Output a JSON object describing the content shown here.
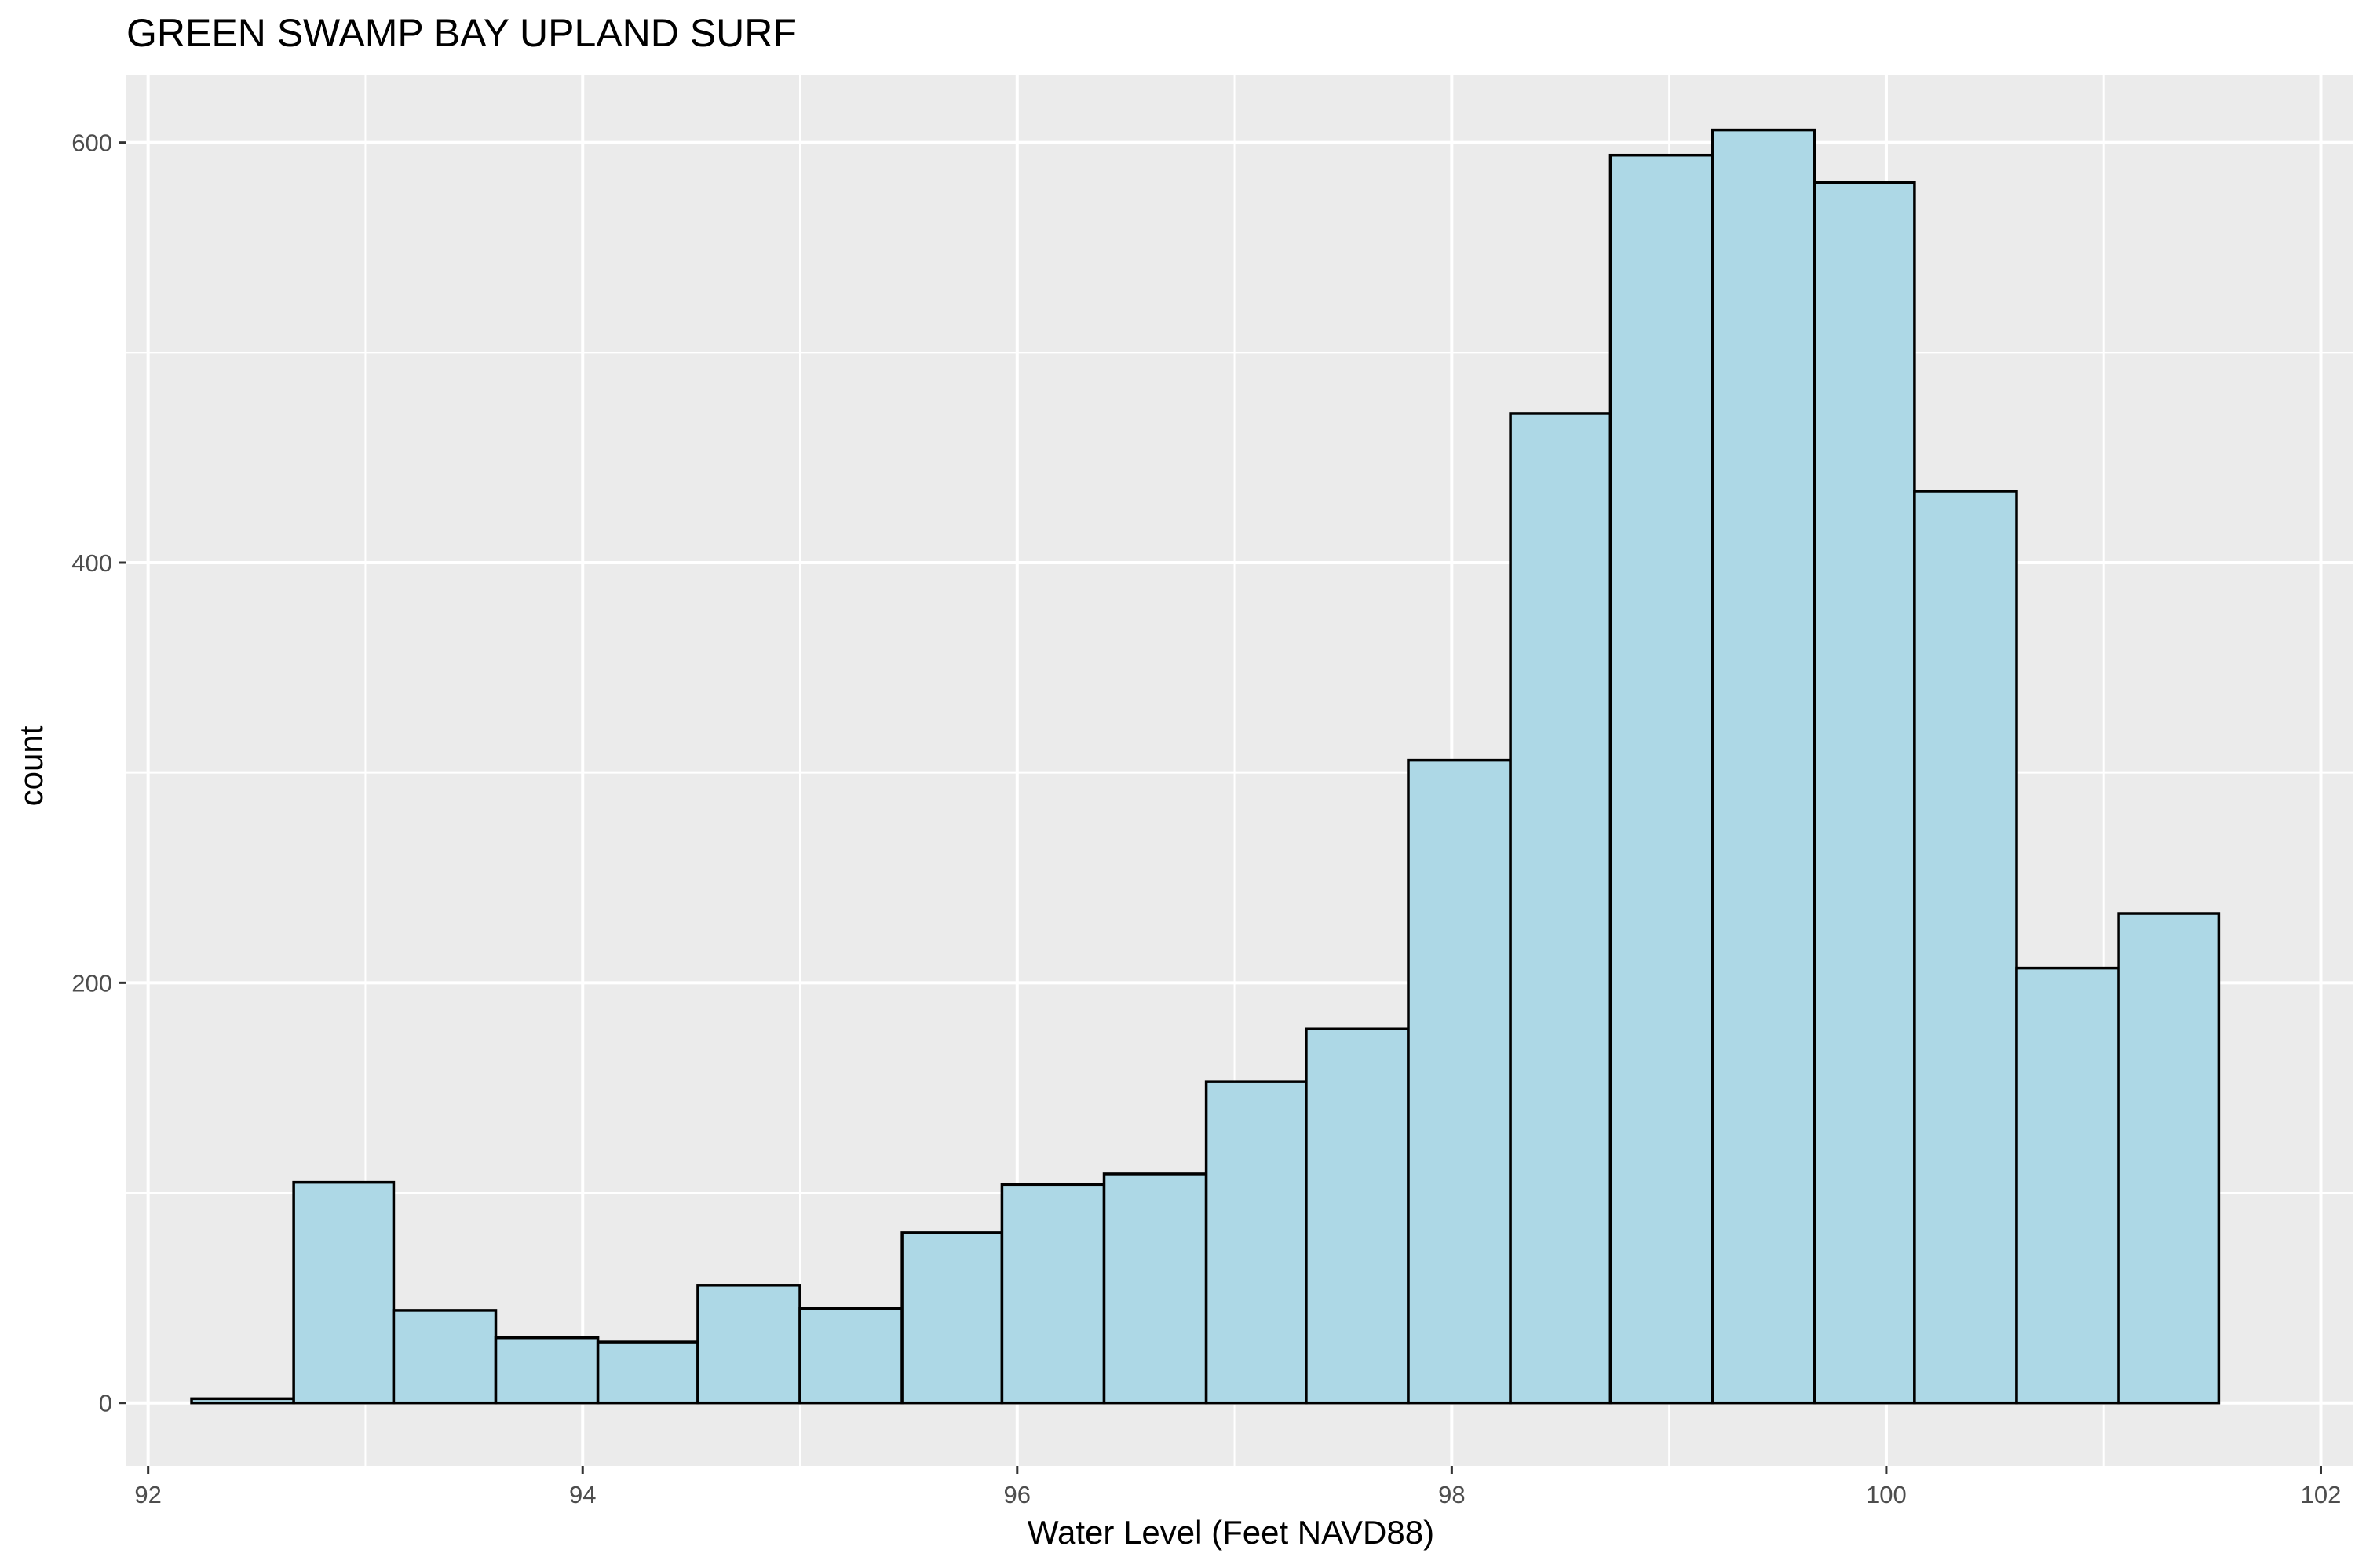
{
  "chart_data": {
    "type": "bar",
    "title": "GREEN SWAMP BAY UPLAND SURF",
    "xlabel": "Water Level (Feet NAVD88)",
    "ylabel": "count",
    "xlim": [
      91.9,
      102.15
    ],
    "ylim": [
      -30,
      632
    ],
    "x_ticks": [
      92,
      94,
      96,
      98,
      100,
      102
    ],
    "x_tick_labels": [
      "92",
      "94",
      "96",
      "98",
      "100",
      "102"
    ],
    "y_ticks": [
      0,
      200,
      400,
      600
    ],
    "y_tick_labels": [
      "0",
      "200",
      "400",
      "600"
    ],
    "bin_edges": [
      92.2,
      92.67,
      93.13,
      93.6,
      94.07,
      94.53,
      95.0,
      95.47,
      95.93,
      96.4,
      96.87,
      97.33,
      97.8,
      98.27,
      98.73,
      99.2,
      99.67,
      100.13,
      100.6,
      101.07,
      101.53
    ],
    "values": [
      2,
      105,
      44,
      31,
      29,
      56,
      45,
      81,
      104,
      109,
      153,
      178,
      306,
      471,
      594,
      606,
      581,
      434,
      207,
      233
    ],
    "bar_fill": "#add8e6",
    "bar_stroke": "#000000",
    "panel_background": "#ebebeb",
    "grid_color": "#ffffff",
    "grid": true,
    "legend": "none"
  }
}
